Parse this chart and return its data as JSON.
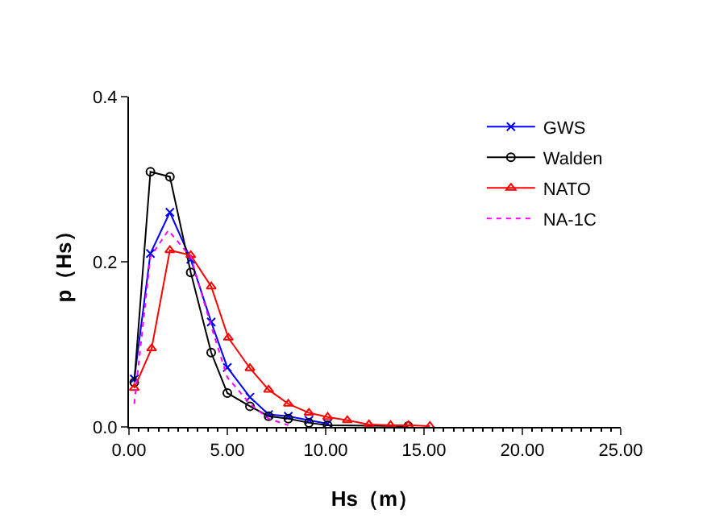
{
  "chart_data": {
    "type": "line",
    "xlabel": "Hs（m）",
    "ylabel": "p（Hs）",
    "xlim": [
      0,
      25
    ],
    "ylim": [
      0,
      0.4
    ],
    "xticks": [
      {
        "value": 0,
        "label": "0.00"
      },
      {
        "value": 5,
        "label": "5.00"
      },
      {
        "value": 10,
        "label": "10.00"
      },
      {
        "value": 15,
        "label": "15.00"
      },
      {
        "value": 20,
        "label": "20.00"
      },
      {
        "value": 25,
        "label": "25.00"
      }
    ],
    "yticks": [
      {
        "value": 0,
        "label": "0.0"
      },
      {
        "value": 0.2,
        "label": "0.2"
      },
      {
        "value": 0.4,
        "label": "0.4"
      }
    ],
    "grid": false,
    "legend": "top right",
    "series": [
      {
        "name": "GWS",
        "color": "#0000ff",
        "marker": "cross",
        "line_style": "solid",
        "x": [
          0.27,
          1.09,
          2.08,
          3.14,
          4.18,
          5.0,
          6.15,
          7.1,
          8.1,
          9.15,
          10.1
        ],
        "values": [
          0.058,
          0.21,
          0.26,
          0.203,
          0.127,
          0.072,
          0.036,
          0.015,
          0.013,
          0.008,
          0.004
        ]
      },
      {
        "name": "Walden",
        "color": "#000000",
        "marker": "circle",
        "line_style": "solid",
        "x": [
          0.27,
          1.09,
          2.08,
          3.14,
          4.18,
          5.0,
          6.15,
          7.1,
          8.1,
          9.15,
          10.1,
          14.2
        ],
        "values": [
          0.054,
          0.309,
          0.303,
          0.187,
          0.09,
          0.041,
          0.025,
          0.013,
          0.01,
          0.005,
          0.002,
          0.001
        ]
      },
      {
        "name": "NATO",
        "color": "#ff0000",
        "marker": "triangle",
        "line_style": "solid",
        "x": [
          0.27,
          1.15,
          2.08,
          3.14,
          4.18,
          5.05,
          6.15,
          7.1,
          8.1,
          9.15,
          10.1,
          11.1,
          12.2,
          13.3,
          14.2,
          15.3
        ],
        "values": [
          0.047,
          0.095,
          0.214,
          0.208,
          0.17,
          0.108,
          0.071,
          0.045,
          0.028,
          0.017,
          0.012,
          0.008,
          0.003,
          0.002,
          0.002,
          0.001
        ]
      },
      {
        "name": "NA-1C",
        "color": "#ff00ff",
        "marker": "none",
        "line_style": "dotted",
        "x": [
          0.27,
          1.09,
          2.0,
          3.14,
          4.18,
          5.0,
          6.15,
          7.1,
          8.1
        ],
        "values": [
          0.028,
          0.206,
          0.238,
          0.206,
          0.122,
          0.06,
          0.028,
          0.01,
          0.002
        ]
      }
    ]
  }
}
